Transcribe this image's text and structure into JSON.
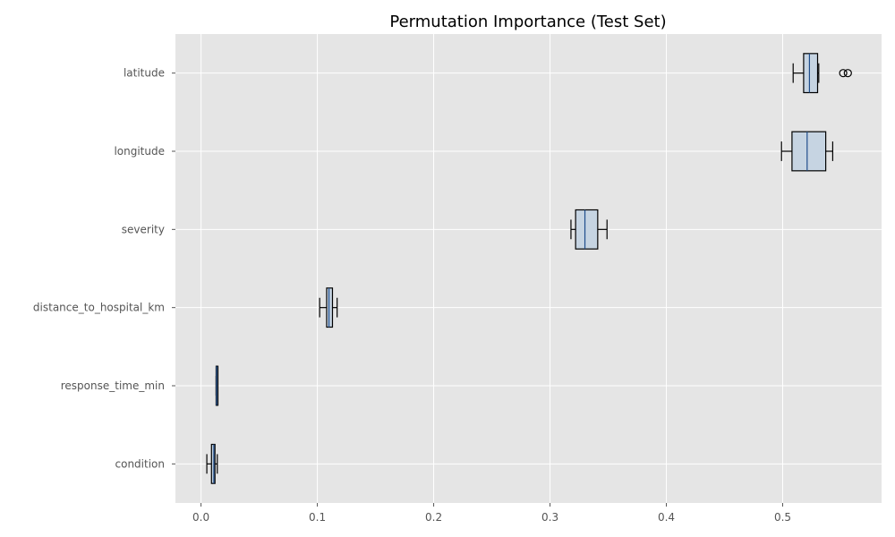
{
  "chart_data": {
    "type": "box",
    "orientation": "horizontal",
    "title": "Permutation Importance (Test Set)",
    "xlabel": "",
    "ylabel": "",
    "xlim": [
      -0.022,
      0.585
    ],
    "xticks": [
      0.0,
      0.1,
      0.2,
      0.3,
      0.4,
      0.5
    ],
    "xtick_labels": [
      "0.0",
      "0.1",
      "0.2",
      "0.3",
      "0.4",
      "0.5"
    ],
    "grid": true,
    "colors": {
      "plot_background": "#e5e5e5",
      "grid": "#ffffff",
      "box_fill": "#c6d4e2",
      "box_edge": "#000000",
      "median": "#1f4e8c"
    },
    "features": [
      {
        "name": "latitude",
        "whisker_low": 0.509,
        "q1": 0.518,
        "median": 0.523,
        "q3": 0.53,
        "whisker_high": 0.531,
        "outliers": [
          0.552,
          0.556
        ]
      },
      {
        "name": "longitude",
        "whisker_low": 0.499,
        "q1": 0.508,
        "median": 0.521,
        "q3": 0.537,
        "whisker_high": 0.543,
        "outliers": []
      },
      {
        "name": "severity",
        "whisker_low": 0.318,
        "q1": 0.322,
        "median": 0.33,
        "q3": 0.341,
        "whisker_high": 0.349,
        "outliers": []
      },
      {
        "name": "distance_to_hospital_km",
        "whisker_low": 0.102,
        "q1": 0.108,
        "median": 0.11,
        "q3": 0.113,
        "whisker_high": 0.117,
        "outliers": []
      },
      {
        "name": "response_time_min",
        "whisker_low": 0.013,
        "q1": 0.013,
        "median": 0.0135,
        "q3": 0.014,
        "whisker_high": 0.014,
        "outliers": []
      },
      {
        "name": "condition",
        "whisker_low": 0.005,
        "q1": 0.009,
        "median": 0.011,
        "q3": 0.012,
        "whisker_high": 0.014,
        "outliers": []
      }
    ]
  }
}
